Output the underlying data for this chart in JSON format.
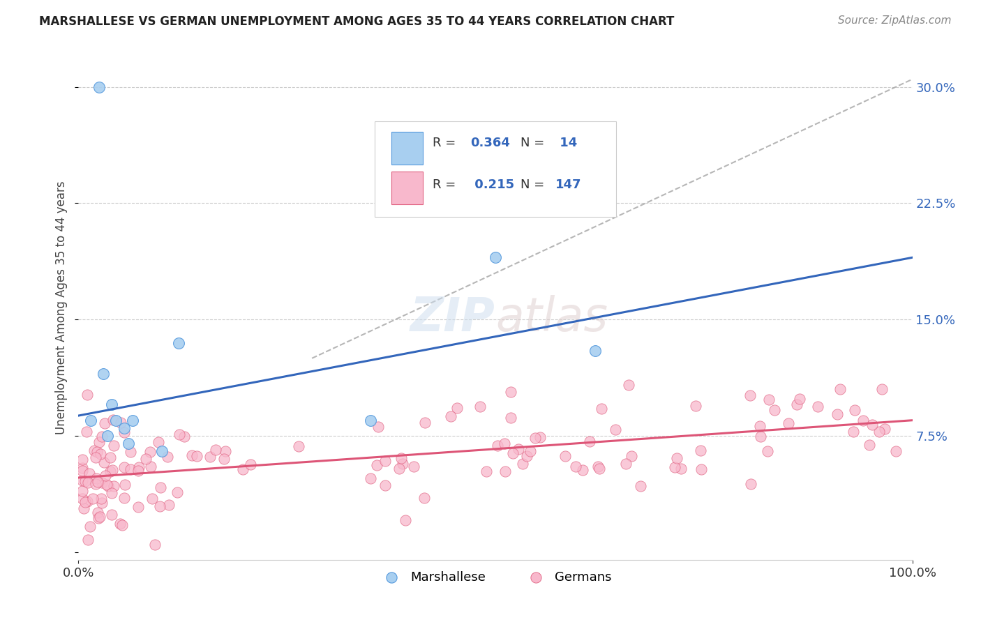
{
  "title": "MARSHALLESE VS GERMAN UNEMPLOYMENT AMONG AGES 35 TO 44 YEARS CORRELATION CHART",
  "source": "Source: ZipAtlas.com",
  "ylabel": "Unemployment Among Ages 35 to 44 years",
  "color_marshallese_fill": "#A8CFF0",
  "color_marshallese_edge": "#5599DD",
  "color_german_fill": "#F8B8CC",
  "color_german_edge": "#E06080",
  "color_trend_blue": "#3366BB",
  "color_trend_pink": "#DD5577",
  "color_trend_gray": "#AAAAAA",
  "xlim": [
    0.0,
    1.0
  ],
  "ylim": [
    -0.005,
    0.32
  ],
  "marshallese_x": [
    0.015,
    0.025,
    0.03,
    0.035,
    0.04,
    0.045,
    0.055,
    0.06,
    0.065,
    0.1,
    0.12,
    0.35,
    0.5,
    0.62
  ],
  "marshallese_y": [
    0.085,
    0.3,
    0.115,
    0.075,
    0.095,
    0.085,
    0.08,
    0.07,
    0.085,
    0.065,
    0.135,
    0.085,
    0.19,
    0.13
  ],
  "blue_trend_x0": 0.0,
  "blue_trend_y0": 0.088,
  "blue_trend_x1": 1.0,
  "blue_trend_y1": 0.19,
  "pink_trend_x0": 0.0,
  "pink_trend_y0": 0.048,
  "pink_trend_x1": 1.0,
  "pink_trend_y1": 0.085,
  "gray_trend_x0": 0.28,
  "gray_trend_y0": 0.125,
  "gray_trend_x1": 1.0,
  "gray_trend_y1": 0.305
}
